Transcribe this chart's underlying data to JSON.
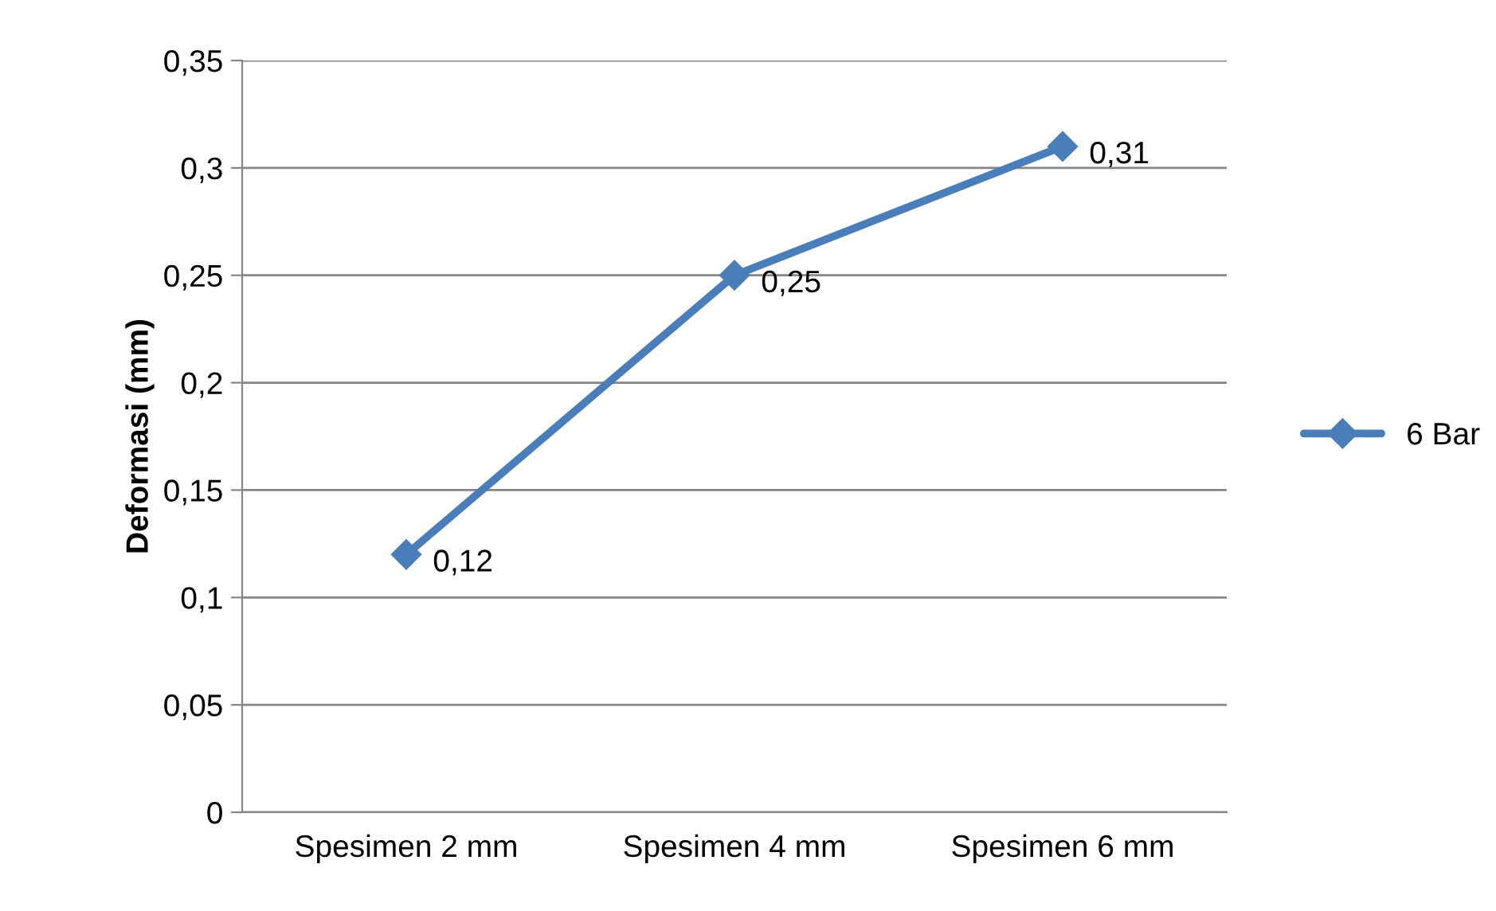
{
  "chart_data": {
    "type": "line",
    "ylabel": "Deformasi (mm)",
    "categories": [
      "Spesimen 2 mm",
      "Spesimen 4 mm",
      "Spesimen 6 mm"
    ],
    "series": [
      {
        "name": "6 Bar",
        "color": "#4a7ebb",
        "values": [
          0.12,
          0.25,
          0.31
        ],
        "value_labels": [
          "0,12",
          "0,25",
          "0,31"
        ]
      }
    ],
    "ylim": [
      0,
      0.35
    ],
    "yticks": [
      0,
      {
        "value": 0.05,
        "label": "0,05"
      },
      {
        "value": 0.1,
        "label": "0,1"
      },
      {
        "value": 0.15,
        "label": "0,15"
      },
      {
        "value": 0.2,
        "label": "0,2"
      },
      {
        "value": 0.25,
        "label": "0,25"
      },
      {
        "value": 0.3,
        "label": "0,3"
      },
      {
        "value": 0.35,
        "label": "0,35"
      }
    ],
    "grid": "y",
    "legend": "right",
    "marker": "diamond",
    "line_style": "solid"
  }
}
